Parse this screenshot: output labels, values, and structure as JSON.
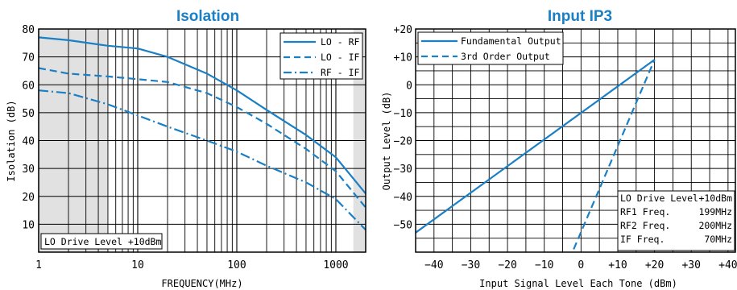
{
  "chart_data": [
    {
      "type": "line",
      "title": "Isolation",
      "xlabel": "FREQUENCY(MHz)",
      "ylabel": "Isolation (dB)",
      "x_scale": "log",
      "xlim": [
        1,
        2000
      ],
      "ylim": [
        0,
        80
      ],
      "x_ticks": [
        1,
        10,
        100,
        1000
      ],
      "x_tick_labels": [
        "1",
        "10",
        "100",
        "1000"
      ],
      "y_ticks": [
        10,
        20,
        30,
        40,
        50,
        60,
        70,
        80
      ],
      "y_tick_labels": [
        "10",
        "20",
        "30",
        "40",
        "50",
        "60",
        "70",
        "80"
      ],
      "grid": true,
      "legend_position": "top-right",
      "shaded_ranges": [
        [
          1,
          5
        ],
        [
          1500,
          2000
        ]
      ],
      "annotation": "LO Drive Level +10dBm",
      "series": [
        {
          "name": "LO - RF",
          "style": "solid",
          "x": [
            1,
            2,
            5,
            10,
            20,
            50,
            100,
            200,
            500,
            1000,
            2000
          ],
          "y": [
            77,
            76,
            74,
            73,
            70,
            64,
            58,
            51,
            42,
            34,
            21
          ]
        },
        {
          "name": "LO - IF",
          "style": "dashed",
          "x": [
            1,
            2,
            5,
            10,
            20,
            50,
            100,
            200,
            500,
            1000,
            2000
          ],
          "y": [
            66,
            64,
            63,
            62,
            61,
            57,
            52,
            46,
            37,
            29,
            16
          ]
        },
        {
          "name": "RF - IF",
          "style": "dashdot",
          "x": [
            1,
            2,
            5,
            10,
            20,
            50,
            100,
            200,
            500,
            1000,
            2000
          ],
          "y": [
            58,
            57,
            53,
            49,
            45,
            40,
            36,
            31,
            25,
            19,
            8
          ]
        }
      ]
    },
    {
      "type": "line",
      "title": "Input IP3",
      "xlabel": "Input Signal Level Each Tone (dBm)",
      "ylabel": "Output Level (dB)",
      "xlim": [
        -45,
        42
      ],
      "ylim": [
        -60,
        20
      ],
      "x_ticks": [
        -40,
        -30,
        -20,
        -10,
        0,
        10,
        20,
        30,
        40
      ],
      "x_tick_labels": [
        "−40",
        "−30",
        "−20",
        "−10",
        "0",
        "+10",
        "+20",
        "+30",
        "+40"
      ],
      "y_ticks": [
        -50,
        -40,
        -30,
        -20,
        -10,
        0,
        10,
        20
      ],
      "y_tick_labels": [
        "−50",
        "−40",
        "−30",
        "−20",
        "−10",
        "0",
        "+10",
        "+20"
      ],
      "grid": true,
      "legend_position": "top-left",
      "series": [
        {
          "name": "Fundamental Output",
          "style": "solid",
          "x": [
            -45,
            20
          ],
          "y": [
            -53,
            9
          ]
        },
        {
          "name": "3rd Order Output",
          "style": "dashed",
          "x": [
            -2,
            20
          ],
          "y": [
            -59,
            9
          ]
        }
      ],
      "info_box": [
        {
          "label": "LO Drive Level",
          "value": "+10dBm"
        },
        {
          "label": "RF1 Freq.",
          "value": "199MHz"
        },
        {
          "label": "RF2 Freq.",
          "value": "200MHz"
        },
        {
          "label": "IF Freq.",
          "value": "70MHz"
        }
      ]
    }
  ],
  "colors": {
    "line": "#1a7fc4",
    "title": "#1a7fc4",
    "shade": "#e1e1e1",
    "grid": "#000000"
  }
}
